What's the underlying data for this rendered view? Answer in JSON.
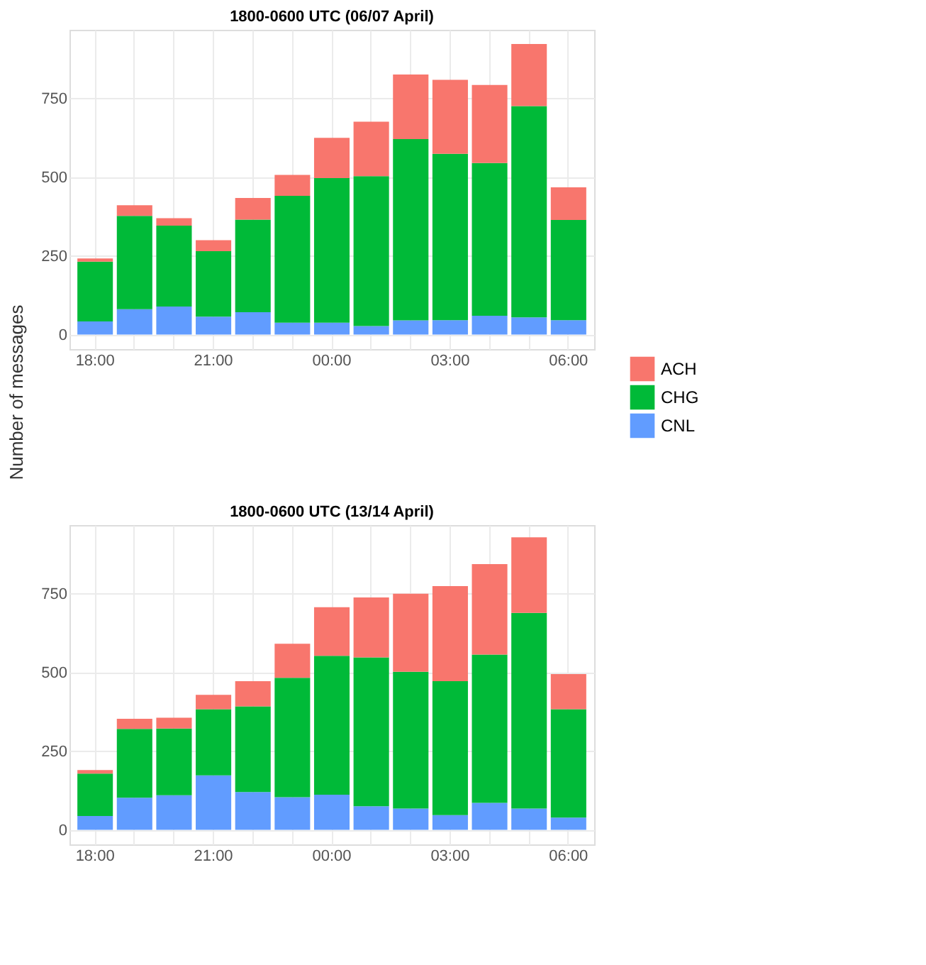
{
  "chart_data": [
    {
      "type": "bar",
      "stacked": true,
      "title": "1800-0600 UTC (06/07 April)",
      "ylabel": "Number of messages",
      "categories": [
        "18:00",
        null,
        null,
        "21:00",
        null,
        null,
        "00:00",
        null,
        null,
        "03:00",
        null,
        null,
        "06:00"
      ],
      "series": [
        {
          "name": "CNL",
          "color": "#619cff",
          "values": [
            42,
            81,
            89,
            57,
            71,
            38,
            38,
            27,
            45,
            46,
            60,
            55,
            46
          ]
        },
        {
          "name": "CHG",
          "color": "#00ba38",
          "values": [
            190,
            296,
            257,
            208,
            294,
            403,
            459,
            476,
            576,
            528,
            485,
            671,
            318
          ]
        },
        {
          "name": "ACH",
          "color": "#f8766d",
          "values": [
            10,
            34,
            24,
            35,
            69,
            66,
            128,
            173,
            205,
            235,
            248,
            197,
            104
          ]
        }
      ],
      "ylim": [
        -46,
        968
      ],
      "yticks": [
        0,
        250,
        500,
        750
      ],
      "grid": true,
      "legend": "right"
    },
    {
      "type": "bar",
      "stacked": true,
      "title": "1800-0600 UTC (13/14 April)",
      "categories": [
        "18:00",
        null,
        null,
        "21:00",
        null,
        null,
        "00:00",
        null,
        null,
        "03:00",
        null,
        null,
        "06:00"
      ],
      "series": [
        {
          "name": "CNL",
          "color": "#619cff",
          "values": [
            44,
            102,
            110,
            173,
            120,
            104,
            112,
            75,
            68,
            47,
            86,
            68,
            39
          ]
        },
        {
          "name": "CHG",
          "color": "#00ba38",
          "values": [
            135,
            219,
            212,
            210,
            272,
            379,
            441,
            473,
            434,
            425,
            471,
            621,
            344
          ]
        },
        {
          "name": "ACH",
          "color": "#f8766d",
          "values": [
            11,
            32,
            34,
            46,
            80,
            108,
            154,
            190,
            248,
            302,
            287,
            240,
            112
          ]
        }
      ],
      "ylim": [
        -46,
        968
      ],
      "yticks": [
        0,
        250,
        500,
        750
      ],
      "grid": true
    }
  ]
}
